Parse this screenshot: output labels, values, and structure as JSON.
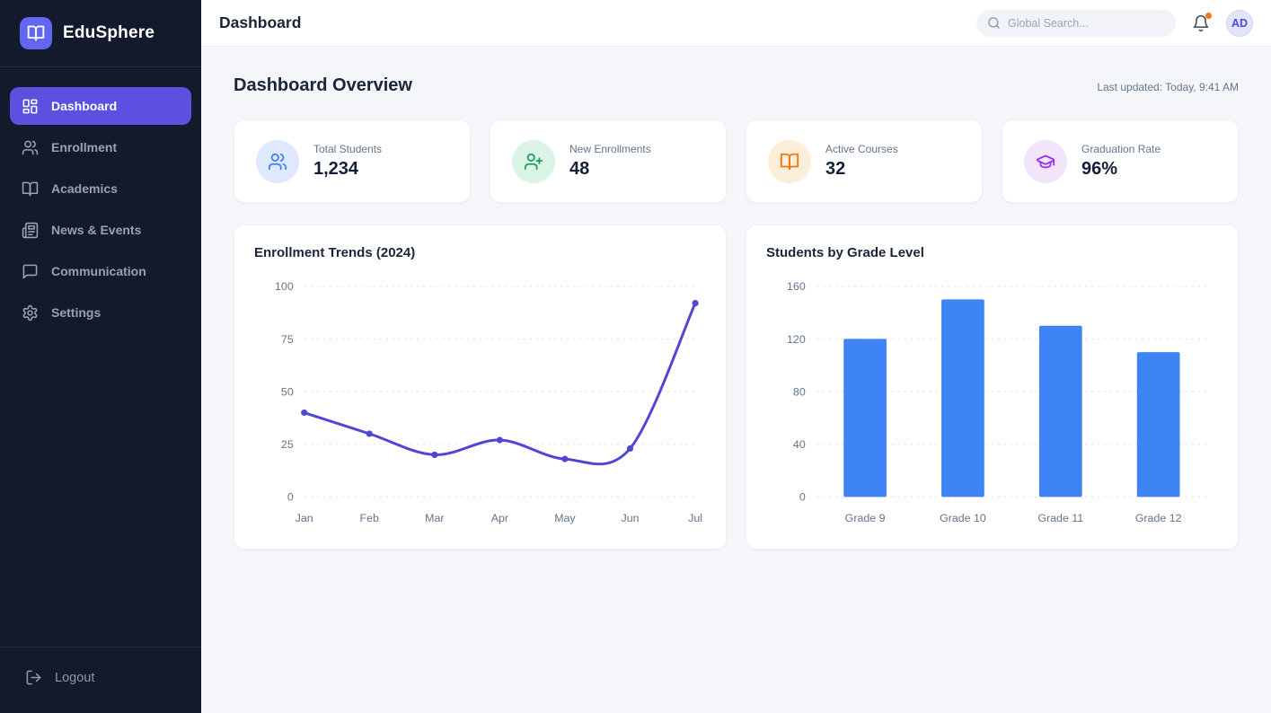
{
  "app": {
    "name": "EduSphere",
    "accent": "#5b50e0",
    "logo_tile_color": "#6366f1"
  },
  "sidebar": {
    "items": [
      {
        "label": "Dashboard",
        "icon": "dashboard-grid-icon",
        "active": true
      },
      {
        "label": "Enrollment",
        "icon": "users-icon",
        "active": false
      },
      {
        "label": "Academics",
        "icon": "open-book-icon",
        "active": false
      },
      {
        "label": "News & Events",
        "icon": "newspaper-icon",
        "active": false
      },
      {
        "label": "Communication",
        "icon": "chat-bubble-icon",
        "active": false
      },
      {
        "label": "Settings",
        "icon": "gear-icon",
        "active": false
      }
    ],
    "logout_label": "Logout"
  },
  "header": {
    "title": "Dashboard",
    "search_placeholder": "Global Search...",
    "notification_dot_color": "#f97316",
    "avatar_initials": "AD"
  },
  "overview": {
    "title": "Dashboard Overview",
    "last_updated": "Last updated: Today, 9:41 AM",
    "stats": [
      {
        "label": "Total Students",
        "value": "1,234",
        "icon": "students-users-icon",
        "accent": "#3b82f6",
        "tint": "#dfe8fc"
      },
      {
        "label": "New Enrollments",
        "value": "48",
        "icon": "user-plus-icon",
        "accent": "#17a35b",
        "tint": "#dcf4e6"
      },
      {
        "label": "Active Courses",
        "value": "32",
        "icon": "open-book-icon",
        "accent": "#f2740d",
        "tint": "#fdeeda"
      },
      {
        "label": "Graduation Rate",
        "value": "96%",
        "icon": "graduation-cap-icon",
        "accent": "#9333ea",
        "tint": "#f2e5fb"
      }
    ]
  },
  "chart_data": [
    {
      "type": "line",
      "title": "Enrollment Trends (2024)",
      "x": [
        "Jan",
        "Feb",
        "Mar",
        "Apr",
        "May",
        "Jun",
        "Jul"
      ],
      "values": [
        40,
        30,
        20,
        27,
        18,
        23,
        92
      ],
      "ylim": [
        0,
        100
      ],
      "yticks": [
        0,
        25,
        50,
        75,
        100
      ],
      "color": "#5145d8",
      "grid": "horizontal-dashed",
      "legend": "none"
    },
    {
      "type": "bar",
      "title": "Students by Grade Level",
      "categories": [
        "Grade 9",
        "Grade 10",
        "Grade 11",
        "Grade 12"
      ],
      "values": [
        120,
        150,
        130,
        110
      ],
      "ylim": [
        0,
        160
      ],
      "yticks": [
        0,
        40,
        80,
        120,
        160
      ],
      "color": "#3e84f5",
      "grid": "horizontal-dashed",
      "legend": "none"
    }
  ]
}
